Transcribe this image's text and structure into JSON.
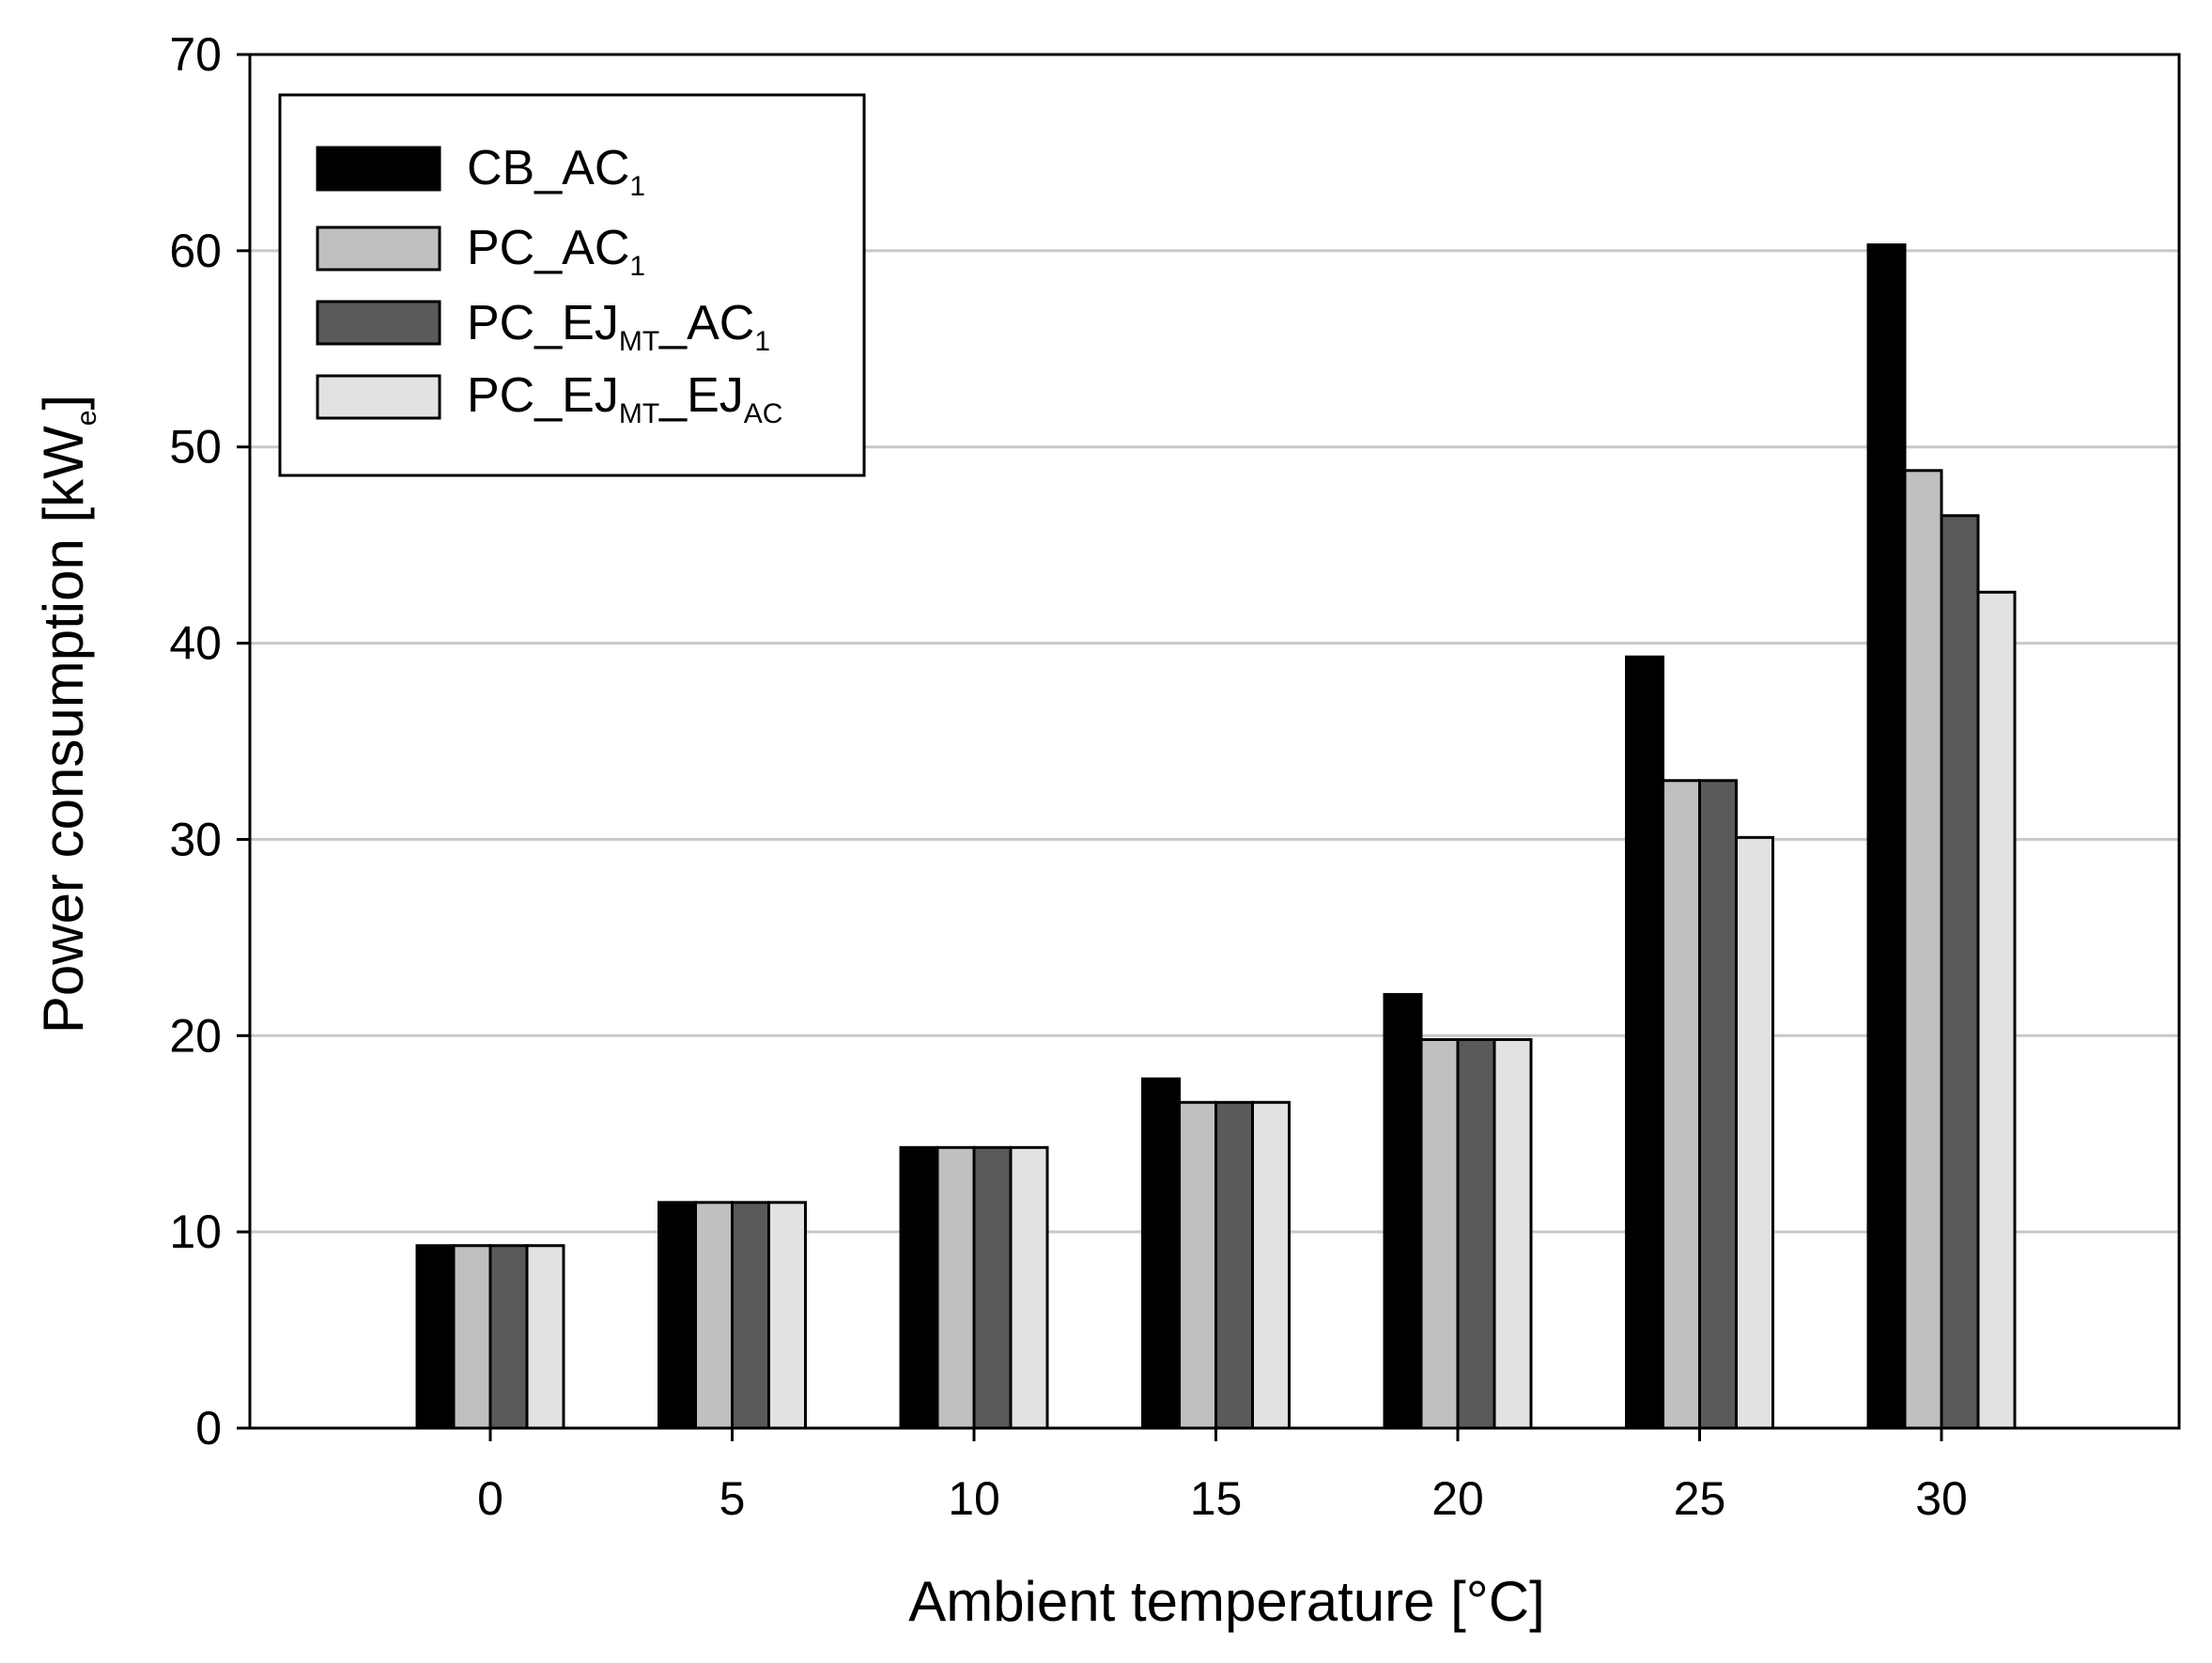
{
  "chart_data": {
    "type": "bar",
    "title": "",
    "xlabel": "Ambient temperature [°C]",
    "ylabel": {
      "text": "Power consumption [kW",
      "subscript": "e",
      "suffix": "]"
    },
    "categories": [
      "0",
      "5",
      "10",
      "15",
      "20",
      "25",
      "30"
    ],
    "ylim": [
      0,
      70
    ],
    "yticks": [
      "0",
      "10",
      "20",
      "30",
      "40",
      "50",
      "60",
      "70"
    ],
    "grid": true,
    "legend_position": "top-left",
    "series": [
      {
        "name": "CB_AC1",
        "label": {
          "base": "CB_AC",
          "sub": "1",
          "mid": "",
          "tail": "",
          "tail_sub": ""
        },
        "color": "#000000",
        "values": [
          9.3,
          11.5,
          14.3,
          17.8,
          22.1,
          39.3,
          60.3
        ]
      },
      {
        "name": "PC_AC1",
        "label": {
          "base": "PC_AC",
          "sub": "1",
          "mid": "",
          "tail": "",
          "tail_sub": ""
        },
        "color": "#c0c0c0",
        "values": [
          9.3,
          11.5,
          14.3,
          16.6,
          19.8,
          33.0,
          48.8
        ]
      },
      {
        "name": "PC_EJMT_AC1",
        "label": {
          "base": "PC_EJ",
          "sub": "MT",
          "mid": "_AC",
          "tail": "1",
          "tail_sub": ""
        },
        "color": "#5a5a5a",
        "values": [
          9.3,
          11.5,
          14.3,
          16.6,
          19.8,
          33.0,
          46.5
        ]
      },
      {
        "name": "PC_EJMT_EJAC",
        "label": {
          "base": "PC_EJ",
          "sub": "MT",
          "mid": "_EJ",
          "tail": "AC",
          "tail_sub": ""
        },
        "color": "#e2e2e2",
        "values": [
          9.3,
          11.5,
          14.3,
          16.6,
          19.8,
          30.1,
          42.6
        ]
      }
    ]
  }
}
